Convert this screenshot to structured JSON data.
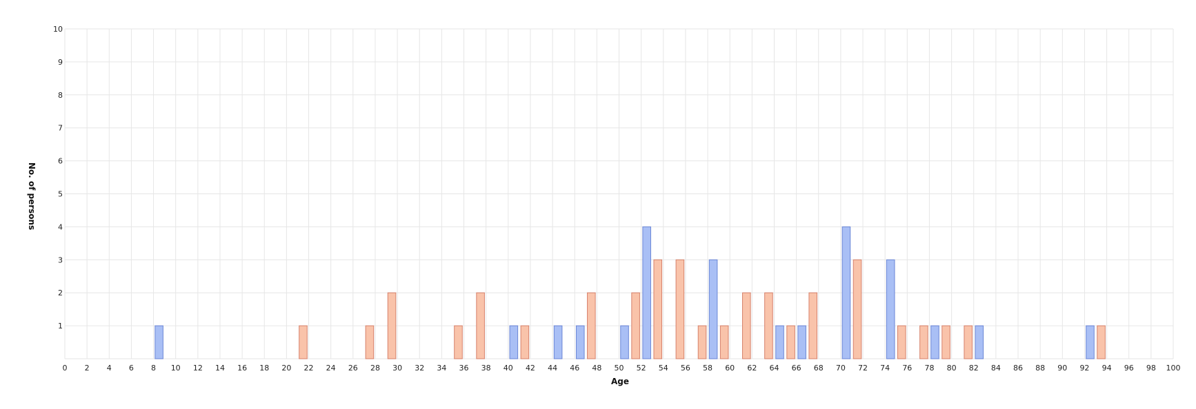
{
  "chart_data": {
    "type": "bar",
    "xlabel": "Age",
    "ylabel": "No. of persons",
    "xlim": [
      0,
      100
    ],
    "ylim": [
      0,
      10
    ],
    "x_tick_step": 2,
    "y_ticks": [
      1,
      2,
      3,
      4,
      5,
      6,
      7,
      8,
      9,
      10
    ],
    "grid": true,
    "legend": "none",
    "series": [
      {
        "color": "#a9bff5",
        "stroke": "#6a86d6",
        "points": [
          {
            "x": 8.5,
            "y": 1
          },
          {
            "x": 40.5,
            "y": 1
          },
          {
            "x": 44.5,
            "y": 1
          },
          {
            "x": 46.5,
            "y": 1
          },
          {
            "x": 50.5,
            "y": 1
          },
          {
            "x": 52.5,
            "y": 4
          },
          {
            "x": 58.5,
            "y": 3
          },
          {
            "x": 64.5,
            "y": 1
          },
          {
            "x": 66.5,
            "y": 1
          },
          {
            "x": 70.5,
            "y": 4
          },
          {
            "x": 74.5,
            "y": 3
          },
          {
            "x": 78.5,
            "y": 1
          },
          {
            "x": 82.5,
            "y": 1
          },
          {
            "x": 92.5,
            "y": 1
          }
        ]
      },
      {
        "color": "#f9c3aa",
        "stroke": "#d6806a",
        "points": [
          {
            "x": 21.5,
            "y": 1
          },
          {
            "x": 27.5,
            "y": 1
          },
          {
            "x": 29.5,
            "y": 2
          },
          {
            "x": 35.5,
            "y": 1
          },
          {
            "x": 37.5,
            "y": 2
          },
          {
            "x": 41.5,
            "y": 1
          },
          {
            "x": 47.5,
            "y": 2
          },
          {
            "x": 51.5,
            "y": 2
          },
          {
            "x": 53.5,
            "y": 3
          },
          {
            "x": 55.5,
            "y": 3
          },
          {
            "x": 57.5,
            "y": 1
          },
          {
            "x": 59.5,
            "y": 1
          },
          {
            "x": 61.5,
            "y": 2
          },
          {
            "x": 63.5,
            "y": 2
          },
          {
            "x": 65.5,
            "y": 1
          },
          {
            "x": 67.5,
            "y": 2
          },
          {
            "x": 71.5,
            "y": 3
          },
          {
            "x": 75.5,
            "y": 1
          },
          {
            "x": 77.5,
            "y": 1
          },
          {
            "x": 79.5,
            "y": 1
          },
          {
            "x": 81.5,
            "y": 1
          },
          {
            "x": 93.5,
            "y": 1
          }
        ]
      }
    ]
  }
}
